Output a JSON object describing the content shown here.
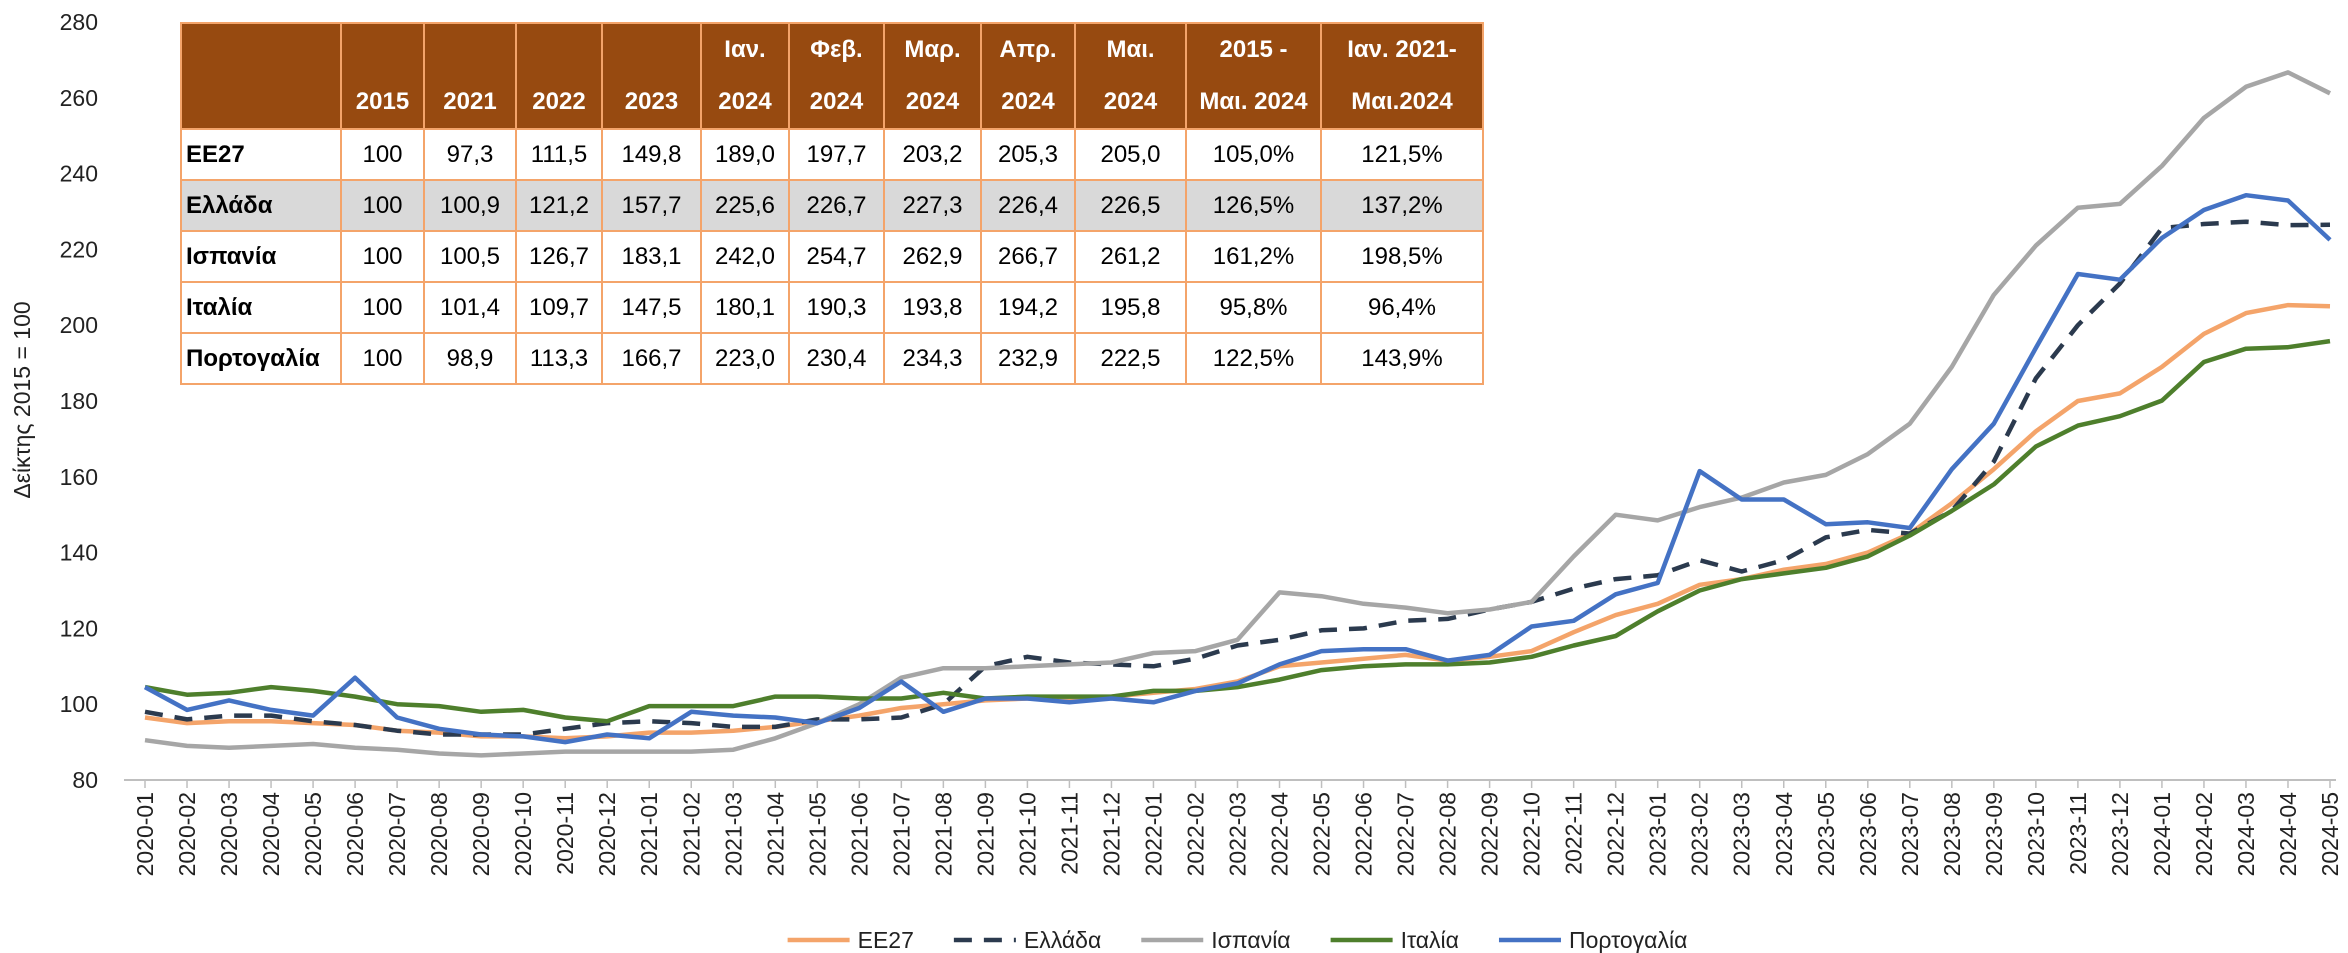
{
  "chart_data": {
    "type": "line",
    "y_label": "Δείκτης 2015 = 100",
    "categories": [
      "2020-01",
      "2020-02",
      "2020-03",
      "2020-04",
      "2020-05",
      "2020-06",
      "2020-07",
      "2020-08",
      "2020-09",
      "2020-10",
      "2020-11",
      "2020-12",
      "2021-01",
      "2021-02",
      "2021-03",
      "2021-04",
      "2021-05",
      "2021-06",
      "2021-07",
      "2021-08",
      "2021-09",
      "2021-10",
      "2021-11",
      "2021-12",
      "2022-01",
      "2022-02",
      "2022-03",
      "2022-04",
      "2022-05",
      "2022-06",
      "2022-07",
      "2022-08",
      "2022-09",
      "2022-10",
      "2022-11",
      "2022-12",
      "2023-01",
      "2023-02",
      "2023-03",
      "2023-04",
      "2023-05",
      "2023-06",
      "2023-07",
      "2023-08",
      "2023-09",
      "2023-10",
      "2023-11",
      "2023-12",
      "2024-01",
      "2024-02",
      "2024-03",
      "2024-04",
      "2024-05"
    ],
    "series": [
      {
        "name": "ΕΕ27",
        "color": "#F4A46A",
        "dash": false,
        "values": [
          96.5,
          95,
          95.5,
          95.5,
          95,
          94.5,
          93,
          92.5,
          91.5,
          91.5,
          91,
          91.5,
          92.5,
          92.5,
          93,
          94,
          95.5,
          97,
          99,
          100,
          101,
          101.5,
          101.5,
          102,
          103,
          104,
          106,
          110,
          111,
          112,
          113,
          111.5,
          112.5,
          114,
          119,
          123.5,
          126.5,
          131.5,
          133,
          135.5,
          137,
          140,
          145,
          153,
          162,
          172,
          180,
          182,
          189.0,
          197.7,
          203.2,
          205.3,
          205.0
        ]
      },
      {
        "name": "Ελλάδα",
        "color": "#2B3A4E",
        "dash": true,
        "values": [
          98,
          96,
          97,
          97,
          95.5,
          94.5,
          93,
          92,
          92,
          92,
          93.5,
          95,
          95.5,
          95,
          94,
          94,
          96,
          96,
          96.5,
          100,
          110,
          112.5,
          111,
          110.5,
          110,
          112,
          115.5,
          117,
          119.5,
          120,
          122,
          122.5,
          125,
          127,
          130.5,
          133,
          134,
          138,
          135,
          138,
          144,
          146,
          145,
          151,
          164,
          186,
          200,
          211,
          225.6,
          226.7,
          227.3,
          226.4,
          226.5
        ]
      },
      {
        "name": "Ισπανία",
        "color": "#A6A6A6",
        "dash": false,
        "values": [
          90.5,
          89,
          88.5,
          89,
          89.5,
          88.5,
          88,
          87,
          86.5,
          87,
          87.5,
          87.5,
          87.5,
          87.5,
          88,
          91,
          95,
          100,
          107,
          109.5,
          109.5,
          110,
          110.5,
          111,
          113.5,
          114,
          117,
          129.5,
          128.5,
          126.5,
          125.5,
          124,
          125,
          127,
          139,
          150,
          148.5,
          152,
          154.5,
          158.5,
          160.5,
          166,
          174,
          189,
          208,
          221,
          231,
          232,
          242.0,
          254.7,
          262.9,
          266.7,
          261.2
        ]
      },
      {
        "name": "Ιταλία",
        "color": "#4E7F2C",
        "dash": false,
        "values": [
          104.5,
          102.5,
          103,
          104.5,
          103.5,
          102,
          100,
          99.5,
          98,
          98.5,
          96.5,
          95.5,
          99.5,
          99.5,
          99.5,
          102,
          102,
          101.5,
          101.5,
          103,
          101.5,
          102,
          102,
          102,
          103.5,
          103.5,
          104.5,
          106.5,
          109,
          110,
          110.5,
          110.5,
          111,
          112.5,
          115.5,
          118,
          124.5,
          130,
          133,
          134.5,
          136,
          139,
          144.5,
          151,
          158,
          168,
          173.5,
          176,
          180.1,
          190.3,
          193.8,
          194.2,
          195.8
        ]
      },
      {
        "name": "Πορτογαλία",
        "color": "#4472C4",
        "dash": false,
        "values": [
          104.5,
          98.5,
          101,
          98.5,
          97,
          107,
          96.5,
          93.5,
          92,
          91.5,
          90,
          92,
          91,
          98,
          97,
          96.5,
          95,
          99,
          106,
          98,
          101.5,
          101.5,
          100.5,
          101.5,
          100.5,
          103.5,
          105.5,
          110.5,
          114,
          114.5,
          114.5,
          111.5,
          113,
          120.5,
          122,
          129,
          132,
          161.5,
          154,
          154,
          147.5,
          148,
          146.5,
          162,
          174,
          194,
          213.5,
          212,
          223.0,
          230.4,
          234.3,
          232.9,
          222.5
        ]
      }
    ],
    "ylim": [
      80,
      280
    ],
    "yticks": [
      80,
      100,
      120,
      140,
      160,
      180,
      200,
      220,
      240,
      260,
      280
    ],
    "grid": false,
    "legend": "bottom"
  },
  "table": {
    "header": [
      [
        "2015"
      ],
      [
        "2021"
      ],
      [
        "2022"
      ],
      [
        "2023"
      ],
      [
        "Ιαν.",
        "2024"
      ],
      [
        "Φεβ.",
        "2024"
      ],
      [
        "Μαρ.",
        "2024"
      ],
      [
        "Απρ.",
        "2024"
      ],
      [
        "Μαι.",
        "2024"
      ],
      [
        "2015 -",
        "Μαι. 2024"
      ],
      [
        "Ιαν. 2021-",
        "Μαι.2024"
      ]
    ],
    "rows": [
      [
        "ΕΕ27",
        "100",
        "97,3",
        "111,5",
        "149,8",
        "189,0",
        "197,7",
        "203,2",
        "205,3",
        "205,0",
        "105,0%",
        "121,5%"
      ],
      [
        "Ελλάδα",
        "100",
        "100,9",
        "121,2",
        "157,7",
        "225,6",
        "226,7",
        "227,3",
        "226,4",
        "226,5",
        "126,5%",
        "137,2%"
      ],
      [
        "Ισπανία",
        "100",
        "100,5",
        "126,7",
        "183,1",
        "242,0",
        "254,7",
        "262,9",
        "266,7",
        "261,2",
        "161,2%",
        "198,5%"
      ],
      [
        "Ιταλία",
        "100",
        "101,4",
        "109,7",
        "147,5",
        "180,1",
        "190,3",
        "193,8",
        "194,2",
        "195,8",
        "95,8%",
        "96,4%"
      ],
      [
        "Πορτογαλία",
        "100",
        "98,9",
        "113,3",
        "166,7",
        "223,0",
        "230,4",
        "234,3",
        "232,9",
        "222,5",
        "122,5%",
        "143,9%"
      ]
    ]
  }
}
